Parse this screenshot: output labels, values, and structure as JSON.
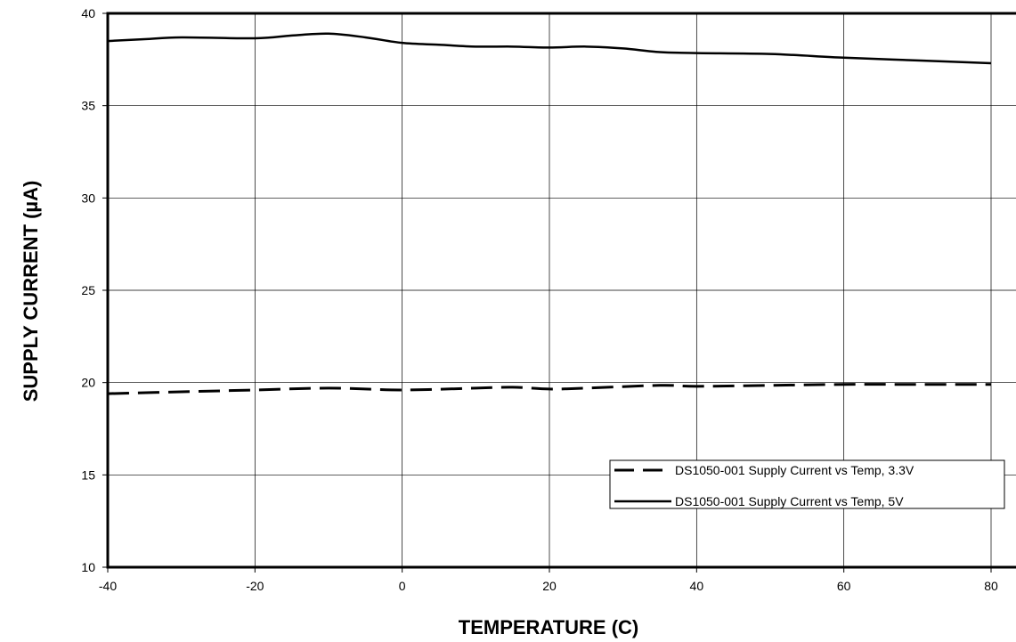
{
  "chart_data": {
    "type": "line",
    "xlabel": "TEMPERATURE (C)",
    "ylabel": "SUPPLY CURRENT (µA)",
    "xlim": [
      -40,
      80
    ],
    "ylim": [
      10,
      40
    ],
    "xticks": [
      -40,
      -20,
      0,
      20,
      40,
      60,
      80
    ],
    "yticks": [
      10,
      15,
      20,
      25,
      30,
      35,
      40
    ],
    "xtick_labels": [
      "-40",
      "-20",
      "0",
      "20",
      "40",
      "60",
      "80"
    ],
    "ytick_labels": [
      "10",
      "15",
      "20",
      "25",
      "30",
      "35",
      "40"
    ],
    "grid": true,
    "legend_position": "bottom-right",
    "series": [
      {
        "name": "DS1050-001 Supply Current vs Temp, 3.3V",
        "style": "dashed",
        "color": "#000000",
        "x": [
          -40,
          -30,
          -20,
          -10,
          0,
          10,
          15,
          20,
          25,
          35,
          40,
          50,
          60,
          70,
          80
        ],
        "y": [
          19.4,
          19.5,
          19.6,
          19.7,
          19.6,
          19.7,
          19.75,
          19.65,
          19.7,
          19.85,
          19.8,
          19.85,
          19.9,
          19.9,
          19.9
        ]
      },
      {
        "name": "DS1050-001 Supply Current vs Temp, 5V",
        "style": "solid",
        "color": "#000000",
        "x": [
          -40,
          -35,
          -30,
          -20,
          -15,
          -10,
          -5,
          0,
          5,
          10,
          15,
          20,
          25,
          30,
          35,
          40,
          50,
          60,
          70,
          80
        ],
        "y": [
          38.5,
          38.6,
          38.7,
          38.65,
          38.8,
          38.9,
          38.7,
          38.4,
          38.3,
          38.2,
          38.2,
          38.15,
          38.2,
          38.1,
          37.9,
          37.85,
          37.8,
          37.6,
          37.45,
          37.3
        ]
      }
    ]
  }
}
